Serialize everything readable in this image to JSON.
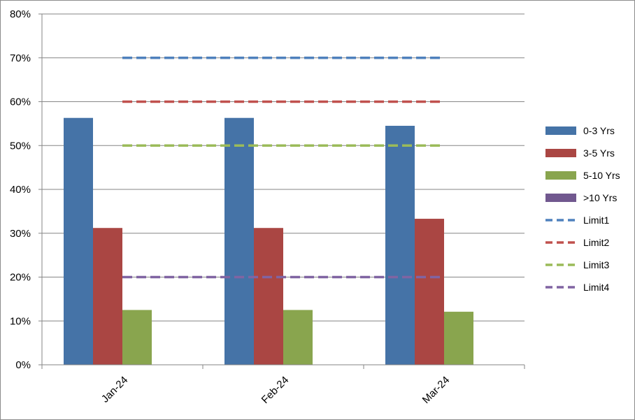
{
  "chart_data": {
    "type": "bar",
    "categories": [
      "Jan-24",
      "Feb-24",
      "Mar-24"
    ],
    "series": [
      {
        "name": "0-3 Yrs",
        "legend_label": " 0-3 Yrs",
        "color": "#4573A7",
        "values": [
          0.563,
          0.563,
          0.545
        ]
      },
      {
        "name": "3-5 Yrs",
        "legend_label": " 3-5 Yrs",
        "color": "#AA4643",
        "values": [
          0.312,
          0.312,
          0.333
        ]
      },
      {
        "name": "5-10 Yrs",
        "legend_label": "5-10 Yrs",
        "color": "#89A54E",
        "values": [
          0.125,
          0.125,
          0.121
        ]
      },
      {
        "name": ">10 Yrs",
        "legend_label": " >10 Yrs",
        "color": "#71588F",
        "values": [
          0,
          0,
          0
        ]
      }
    ],
    "limits": [
      {
        "name": "Limit1",
        "color": "#4F81BD",
        "value": 0.7
      },
      {
        "name": "Limit2",
        "color": "#C0504D",
        "value": 0.6
      },
      {
        "name": "Limit3",
        "color": "#9BBB59",
        "value": 0.5
      },
      {
        "name": "Limit4",
        "color": "#8064A2",
        "value": 0.2
      }
    ],
    "y_ticks": [
      "0%",
      "10%",
      "20%",
      "30%",
      "40%",
      "50%",
      "60%",
      "70%",
      "80%"
    ],
    "ylim": [
      0,
      0.8
    ],
    "grid": true,
    "legend_position": "right",
    "title": "",
    "xlabel": "",
    "ylabel": ""
  }
}
